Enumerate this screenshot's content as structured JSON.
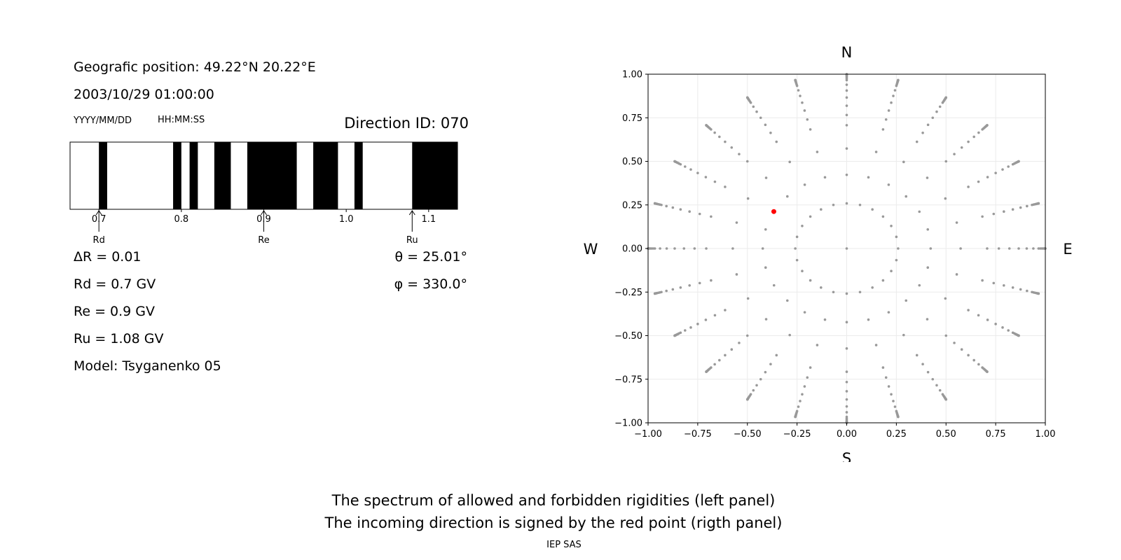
{
  "left_panel": {
    "position_text": "Geografic position: 49.22°N 20.22°E",
    "datetime_text": "2003/10/29 01:00:00",
    "date_format_label": "YYYY/MM/DD",
    "time_format_label": "HH:MM:SS",
    "direction_id_text": "Direction ID: 070",
    "delta_r_text": "ΔR = 0.01",
    "rd_text": "Rd = 0.7 GV",
    "re_text": "Re = 0.9 GV",
    "ru_text": "Ru = 1.08 GV",
    "model_text": "Model: Tsyganenko 05",
    "theta_text": "θ = 25.01°",
    "phi_text": "φ = 330.0°"
  },
  "right_panel": {
    "compass": {
      "north": "N",
      "south": "S",
      "west": "W",
      "east": "E"
    }
  },
  "footer": {
    "caption_line1": "The spectrum of allowed and forbidden rigidities (left panel)",
    "caption_line2": "The incoming direction is signed by the red point (rigth panel)",
    "credit": "IEP SAS"
  },
  "chart_data": [
    {
      "type": "bar",
      "description_kind": "rigidity spectrum barcode",
      "xlim": [
        0.665,
        1.135
      ],
      "x_ticks": [
        "0.7",
        "0.8",
        "0.9",
        "1.0",
        "1.1"
      ],
      "x_tick_values": [
        0.7,
        0.8,
        0.9,
        1.0,
        1.1
      ],
      "forbidden_bands": [
        [
          0.7,
          0.71
        ],
        [
          0.79,
          0.8
        ],
        [
          0.81,
          0.82
        ],
        [
          0.84,
          0.86
        ],
        [
          0.88,
          0.94
        ],
        [
          0.96,
          0.99
        ],
        [
          1.01,
          1.02
        ],
        [
          1.08,
          1.135
        ]
      ],
      "band_colors": {
        "forbidden": "#000000",
        "allowed": "#ffffff"
      },
      "markers": [
        {
          "label": "Rd",
          "value": 0.7
        },
        {
          "label": "Re",
          "value": 0.9
        },
        {
          "label": "Ru",
          "value": 1.08
        }
      ]
    },
    {
      "type": "scatter",
      "xlim": [
        -1.0,
        1.0
      ],
      "ylim": [
        -1.0,
        1.0
      ],
      "x_ticks": [
        "−1.00",
        "−0.75",
        "−0.50",
        "−0.25",
        "0.00",
        "0.25",
        "0.50",
        "0.75",
        "1.00"
      ],
      "y_ticks": [
        "1.00",
        "0.75",
        "0.50",
        "0.25",
        "0.00",
        "−0.25",
        "−0.50",
        "−0.75",
        "−1.00"
      ],
      "tick_values": [
        -1.0,
        -0.75,
        -0.5,
        -0.25,
        0.0,
        0.25,
        0.5,
        0.75,
        1.0
      ],
      "grid": true,
      "grid_pattern": {
        "zenith_angles_deg": [
          0,
          15,
          25,
          35,
          45,
          50,
          55,
          60,
          65,
          70,
          75,
          77,
          79,
          81,
          83,
          85,
          87,
          89,
          90
        ],
        "azimuths_deg": [
          0,
          15,
          30,
          45,
          60,
          75,
          90,
          105,
          120,
          135,
          150,
          165,
          180,
          195,
          210,
          225,
          240,
          255,
          270,
          285,
          300,
          315,
          330,
          345
        ],
        "color": "#999999"
      },
      "highlight_point": {
        "theta_deg": 25.01,
        "phi_deg": 330.0,
        "x": -0.367,
        "y": 0.212,
        "color": "#ff0000"
      }
    }
  ]
}
